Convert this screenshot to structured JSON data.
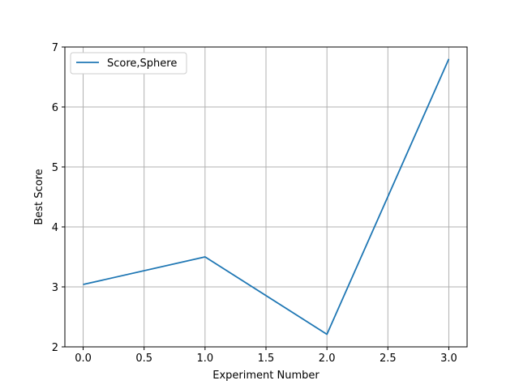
{
  "chart_data": {
    "type": "line",
    "title": "",
    "xlabel": "Experiment Number",
    "ylabel": "Best Score",
    "xlim": [
      -0.15,
      3.15
    ],
    "ylim": [
      2.0,
      7.0
    ],
    "xticks": [
      0.0,
      0.5,
      1.0,
      1.5,
      2.0,
      2.5,
      3.0
    ],
    "xtick_labels": [
      "0.0",
      "0.5",
      "1.0",
      "1.5",
      "2.0",
      "2.5",
      "3.0"
    ],
    "yticks": [
      2,
      3,
      4,
      5,
      6,
      7
    ],
    "ytick_labels": [
      "2",
      "3",
      "4",
      "5",
      "6",
      "7"
    ],
    "grid": true,
    "legend_position": "top-left",
    "series": [
      {
        "name": "Score,Sphere",
        "color": "#1f77b4",
        "x": [
          0,
          1,
          2,
          3
        ],
        "y": [
          3.04,
          3.5,
          2.21,
          6.8
        ]
      }
    ]
  }
}
